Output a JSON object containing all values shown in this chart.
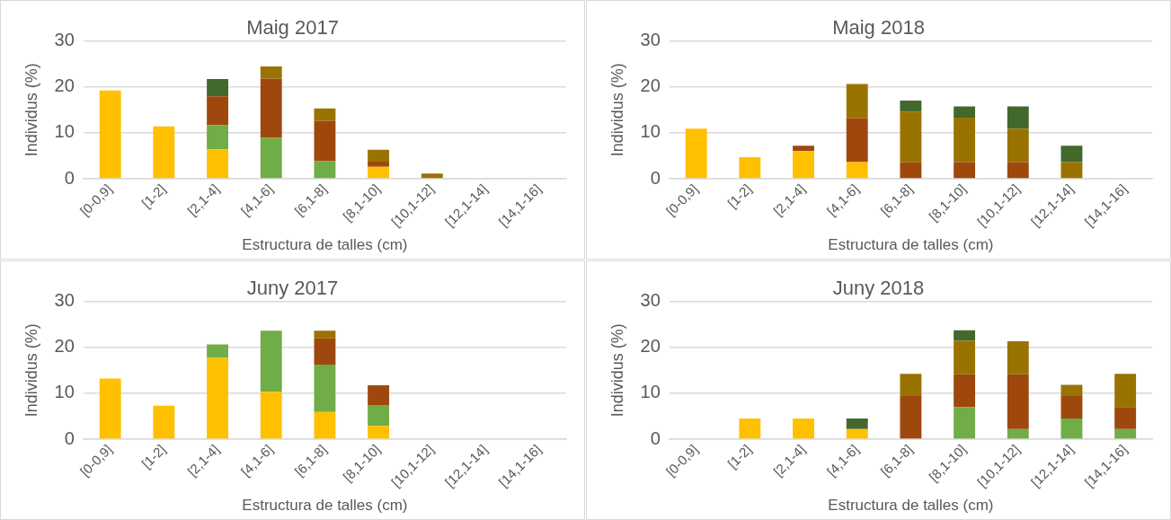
{
  "chart_data": [
    {
      "type": "bar",
      "stacked": true,
      "title": "Maig 2017",
      "xlabel": "Estructura de talles (cm)",
      "ylabel": "Individus (%)",
      "categories": [
        "[0-0,9]",
        "[1-2]",
        "[2,1-4]",
        "[4,1-6]",
        "[6,1-8]",
        "[8,1-10]",
        "[10,1-12]",
        "[12,1-14]",
        "[14,1-16]"
      ],
      "ylim": [
        0,
        30
      ],
      "yticks": [
        0,
        10,
        20,
        30
      ],
      "grid": "y",
      "legend": false,
      "series": [
        {
          "color": "#ffc000",
          "values": [
            19.2,
            11.4,
            6.4,
            null,
            null,
            2.6,
            null,
            null,
            null
          ]
        },
        {
          "color": "#70ad47",
          "values": [
            null,
            null,
            5.2,
            8.9,
            3.8,
            null,
            null,
            null,
            null
          ]
        },
        {
          "color": "#9e480e",
          "values": [
            null,
            null,
            6.3,
            12.9,
            8.8,
            1.1,
            null,
            null,
            null
          ]
        },
        {
          "color": "#997300",
          "values": [
            null,
            null,
            null,
            2.6,
            2.7,
            2.6,
            1.1,
            null,
            null
          ]
        },
        {
          "color": "#43682b",
          "values": [
            null,
            null,
            3.8,
            null,
            null,
            null,
            null,
            null,
            null
          ]
        }
      ]
    },
    {
      "type": "bar",
      "stacked": true,
      "title": "Maig 2018",
      "xlabel": "Estructura de talles (cm)",
      "ylabel": "Individus (%)",
      "categories": [
        "[0-0,9]",
        "[1-2]",
        "[2,1-4]",
        "[4,1-6]",
        "[6,1-8]",
        "[8,1-10]",
        "[10,1-12]",
        "[12,1-14]",
        "[14,1-16]"
      ],
      "ylim": [
        0,
        30
      ],
      "yticks": [
        0,
        10,
        20,
        30
      ],
      "grid": "y",
      "legend": false,
      "series": [
        {
          "color": "#ffc000",
          "values": [
            10.9,
            4.7,
            6.0,
            3.6,
            null,
            null,
            null,
            null,
            null
          ]
        },
        {
          "color": "#70ad47",
          "values": [
            null,
            null,
            null,
            null,
            null,
            null,
            null,
            null,
            null
          ]
        },
        {
          "color": "#9e480e",
          "values": [
            null,
            null,
            1.2,
            9.6,
            3.6,
            3.6,
            3.6,
            null,
            null
          ]
        },
        {
          "color": "#997300",
          "values": [
            null,
            null,
            null,
            7.4,
            11.0,
            9.7,
            7.3,
            3.6,
            null
          ]
        },
        {
          "color": "#43682b",
          "values": [
            null,
            null,
            null,
            null,
            2.4,
            2.4,
            4.8,
            3.6,
            null
          ]
        }
      ]
    },
    {
      "type": "bar",
      "stacked": true,
      "title": "Juny 2017",
      "xlabel": "Estructura de talles (cm)",
      "ylabel": "Individus (%)",
      "categories": [
        "[0-0,9]",
        "[1-2]",
        "[2,1-4]",
        "[4,1-6]",
        "[6,1-8]",
        "[8,1-10]",
        "[10,1-12]",
        "[12,1-14]",
        "[14,1-16]"
      ],
      "ylim": [
        0,
        30
      ],
      "yticks": [
        0,
        10,
        20,
        30
      ],
      "grid": "y",
      "legend": false,
      "series": [
        {
          "color": "#ffc000",
          "values": [
            13.2,
            7.3,
            17.7,
            10.3,
            5.9,
            2.9,
            null,
            null,
            null
          ]
        },
        {
          "color": "#70ad47",
          "values": [
            null,
            null,
            2.9,
            13.3,
            10.3,
            4.5,
            null,
            null,
            null
          ]
        },
        {
          "color": "#9e480e",
          "values": [
            null,
            null,
            null,
            null,
            5.7,
            4.3,
            null,
            null,
            null
          ]
        },
        {
          "color": "#997300",
          "values": [
            null,
            null,
            null,
            null,
            1.7,
            null,
            null,
            null,
            null
          ]
        },
        {
          "color": "#43682b",
          "values": [
            null,
            null,
            null,
            null,
            null,
            null,
            null,
            null,
            null
          ]
        }
      ]
    },
    {
      "type": "bar",
      "stacked": true,
      "title": "Juny 2018",
      "xlabel": "Estructura de talles (cm)",
      "ylabel": "Individus (%)",
      "categories": [
        "[0-0,9]",
        "[1-2]",
        "[2,1-4]",
        "[4,1-6]",
        "[6,1-8]",
        "[8,1-10]",
        "[10,1-12]",
        "[12,1-14]",
        "[14,1-16]"
      ],
      "ylim": [
        0,
        30
      ],
      "yticks": [
        0,
        10,
        20,
        30
      ],
      "grid": "y",
      "legend": false,
      "series": [
        {
          "color": "#ffc000",
          "values": [
            null,
            4.5,
            4.5,
            2.2,
            null,
            null,
            null,
            null,
            null
          ]
        },
        {
          "color": "#70ad47",
          "values": [
            null,
            null,
            null,
            null,
            null,
            7.0,
            2.2,
            4.5,
            2.2
          ]
        },
        {
          "color": "#9e480e",
          "values": [
            null,
            null,
            null,
            null,
            9.4,
            7.1,
            11.9,
            4.9,
            4.8
          ]
        },
        {
          "color": "#997300",
          "values": [
            null,
            null,
            null,
            null,
            4.8,
            7.3,
            7.2,
            2.4,
            7.2
          ]
        },
        {
          "color": "#43682b",
          "values": [
            null,
            null,
            null,
            2.3,
            null,
            2.3,
            null,
            null,
            null
          ]
        }
      ]
    }
  ]
}
